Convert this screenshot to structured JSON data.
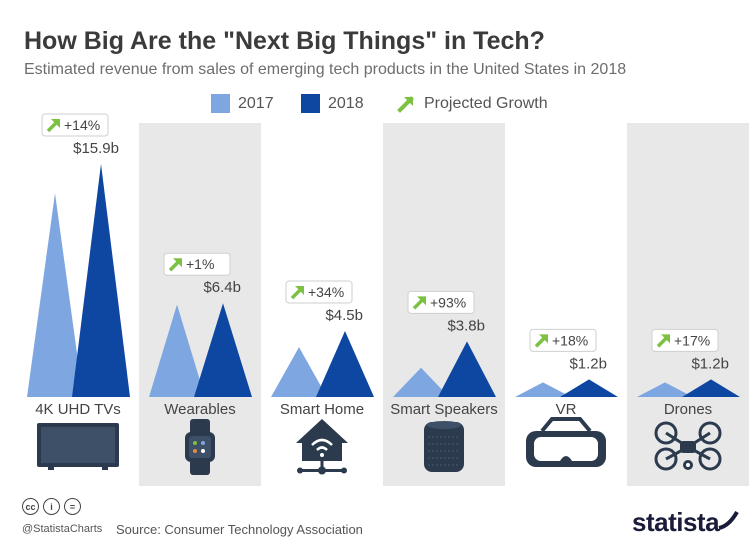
{
  "title": "How Big Are the \"Next Big Things\" in Tech?",
  "subtitle": "Estimated revenue from sales of emerging tech products in the United States in 2018",
  "legend": {
    "item_2017": "2017",
    "item_2018": "2018",
    "item_growth": "Projected Growth"
  },
  "colors": {
    "c2017": "#7ea6e0",
    "c2018": "#0d47a1",
    "growth_arrow": "#7cc142",
    "band": "#e8e8e8",
    "text": "#3b3b3b",
    "icon": "#2b3a4d"
  },
  "chart_data": {
    "type": "area",
    "title": "How Big Are the \"Next Big Things\" in Tech?",
    "subtitle": "Estimated revenue from sales of emerging tech products in the United States in 2018",
    "unit": "billion US$",
    "ylim": [
      0,
      16.5
    ],
    "categories": [
      "4K UHD TVs",
      "Wearables",
      "Smart Home",
      "Smart Speakers",
      "VR",
      "Drones"
    ],
    "series": [
      {
        "name": "2017",
        "values": [
          13.9,
          6.3,
          3.4,
          2.0,
          1.0,
          1.0
        ]
      },
      {
        "name": "2018",
        "values": [
          15.9,
          6.4,
          4.5,
          3.8,
          1.2,
          1.2
        ]
      }
    ],
    "value_labels_2018": [
      "$15.9b",
      "$6.4b",
      "$4.5b",
      "$3.8b",
      "$1.2b",
      "$1.2b"
    ],
    "growth_labels": [
      "+14%",
      "+1%",
      "+34%",
      "+93%",
      "+18%",
      "+17%"
    ],
    "icons": [
      "tv-icon",
      "smartwatch-icon",
      "smart-home-icon",
      "smart-speaker-icon",
      "vr-headset-icon",
      "drone-icon"
    ]
  },
  "footer": {
    "cc_badges": [
      "cc",
      "i",
      "="
    ],
    "handle": "@StatistaCharts",
    "source": "Source: Consumer Technology Association",
    "brand": "statista"
  }
}
